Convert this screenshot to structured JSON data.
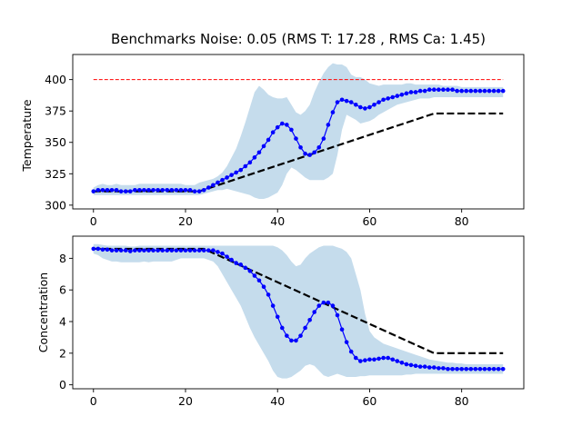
{
  "chart_data": [
    {
      "type": "line",
      "title": "Benchmarks Noise: 0.05 (RMS T: 17.28 , RMS Ca: 1.45)",
      "xlabel": "",
      "ylabel": "Temperature",
      "xlim": [
        -4.5,
        93.5
      ],
      "ylim": [
        297,
        420
      ],
      "xticks": [
        0,
        20,
        40,
        60,
        80
      ],
      "yticks": [
        300,
        325,
        350,
        375,
        400
      ],
      "grid": false,
      "colors": {
        "mean": "#0000ff",
        "band": "#c5dcec",
        "setpoint": "#000000",
        "limit": "#ff0000"
      },
      "series": [
        {
          "role": "mean",
          "values": [
            311,
            312,
            312,
            312,
            312,
            312,
            311,
            311,
            311,
            312,
            312,
            312,
            312,
            312,
            312,
            312,
            312,
            312,
            312,
            312,
            312,
            312,
            311,
            311,
            312,
            314,
            316,
            318,
            320,
            322,
            324,
            326,
            328,
            331,
            334,
            338,
            342,
            347,
            352,
            358,
            362,
            365,
            364,
            360,
            353,
            346,
            341,
            340,
            342,
            346,
            353,
            364,
            374,
            382,
            384,
            383,
            382,
            380,
            378,
            377,
            378,
            380,
            382,
            384,
            385,
            386,
            387,
            388,
            389,
            390,
            390,
            391,
            391,
            392,
            392,
            392,
            392,
            392,
            392,
            391,
            391,
            391,
            391,
            391,
            391,
            391,
            391,
            391,
            391,
            391
          ]
        },
        {
          "role": "band-upper",
          "values": [
            314,
            316,
            317,
            316,
            316,
            317,
            316,
            316,
            316,
            316,
            317,
            317,
            317,
            317,
            317,
            317,
            317,
            317,
            317,
            317,
            316,
            316,
            316,
            318,
            319,
            320,
            321,
            323,
            326,
            331,
            338,
            345,
            355,
            366,
            378,
            390,
            395,
            392,
            388,
            386,
            385,
            385,
            386,
            380,
            374,
            372,
            375,
            380,
            390,
            398,
            405,
            410,
            413,
            412,
            412,
            410,
            404,
            402,
            402,
            400,
            397,
            396,
            395,
            396,
            396,
            396,
            396,
            396,
            397,
            397,
            396,
            396,
            396,
            396,
            396,
            396,
            395,
            395,
            395,
            395,
            394,
            394,
            394,
            394,
            394,
            394,
            394,
            394,
            394,
            394
          ]
        },
        {
          "role": "band-lower",
          "values": [
            308,
            308,
            308,
            308,
            308,
            308,
            308,
            308,
            308,
            308,
            308,
            308,
            308,
            308,
            308,
            308,
            308,
            308,
            308,
            308,
            308,
            308,
            308,
            308,
            309,
            310,
            311,
            312,
            312,
            313,
            312,
            311,
            310,
            309,
            308,
            306,
            305,
            305,
            306,
            308,
            310,
            316,
            325,
            330,
            328,
            325,
            322,
            320,
            320,
            320,
            320,
            322,
            325,
            340,
            360,
            372,
            370,
            368,
            365,
            366,
            367,
            369,
            372,
            374,
            376,
            378,
            380,
            381,
            382,
            383,
            384,
            385,
            385,
            385,
            386,
            386,
            386,
            386,
            386,
            386,
            386,
            386,
            386,
            386,
            386,
            386,
            386,
            386,
            386,
            386
          ]
        },
        {
          "role": "setpoint",
          "x": [
            0,
            23,
            74,
            89
          ],
          "values": [
            311,
            311,
            373,
            373
          ]
        },
        {
          "role": "limit",
          "x": [
            0,
            89
          ],
          "values": [
            400,
            400
          ]
        }
      ]
    },
    {
      "type": "line",
      "title": "",
      "xlabel": "",
      "ylabel": "Concentration",
      "xlim": [
        -4.5,
        93.5
      ],
      "ylim": [
        -0.25,
        9.4
      ],
      "xticks": [
        0,
        20,
        40,
        60,
        80
      ],
      "yticks": [
        0,
        2,
        4,
        6,
        8
      ],
      "grid": false,
      "series": [
        {
          "role": "mean",
          "values": [
            8.6,
            8.6,
            8.55,
            8.55,
            8.5,
            8.5,
            8.5,
            8.5,
            8.45,
            8.5,
            8.5,
            8.5,
            8.5,
            8.5,
            8.5,
            8.5,
            8.5,
            8.5,
            8.5,
            8.5,
            8.5,
            8.5,
            8.5,
            8.5,
            8.5,
            8.5,
            8.5,
            8.4,
            8.3,
            8.1,
            7.9,
            7.7,
            7.6,
            7.4,
            7.2,
            6.9,
            6.6,
            6.2,
            5.7,
            5.0,
            4.3,
            3.6,
            3.1,
            2.8,
            2.8,
            3.1,
            3.6,
            4.1,
            4.6,
            5.0,
            5.2,
            5.2,
            5.0,
            4.4,
            3.5,
            2.7,
            2.1,
            1.7,
            1.5,
            1.55,
            1.6,
            1.6,
            1.65,
            1.7,
            1.7,
            1.6,
            1.5,
            1.4,
            1.3,
            1.25,
            1.2,
            1.15,
            1.15,
            1.1,
            1.1,
            1.05,
            1.05,
            1.0,
            1.0,
            1.0,
            1.0,
            1.0,
            1.0,
            1.0,
            1.0,
            1.0,
            1.0,
            1.0,
            1.0,
            1.0
          ]
        },
        {
          "role": "band-upper",
          "values": [
            8.9,
            8.9,
            8.85,
            8.8,
            8.8,
            8.8,
            8.8,
            8.8,
            8.75,
            8.75,
            8.8,
            8.8,
            8.8,
            8.8,
            8.8,
            8.8,
            8.8,
            8.8,
            8.8,
            8.8,
            8.8,
            8.8,
            8.8,
            8.8,
            8.8,
            8.8,
            8.8,
            8.8,
            8.8,
            8.8,
            8.8,
            8.8,
            8.8,
            8.8,
            8.8,
            8.8,
            8.8,
            8.8,
            8.8,
            8.8,
            8.7,
            8.5,
            8.2,
            7.8,
            7.5,
            7.6,
            8.0,
            8.3,
            8.5,
            8.7,
            8.8,
            8.8,
            8.8,
            8.7,
            8.6,
            8.4,
            8.0,
            7.0,
            6.0,
            4.5,
            3.4,
            3.0,
            2.8,
            2.6,
            2.5,
            2.4,
            2.3,
            2.2,
            2.1,
            2.0,
            1.9,
            1.8,
            1.7,
            1.6,
            1.55,
            1.5,
            1.45,
            1.4,
            1.4,
            1.35,
            1.35,
            1.3,
            1.3,
            1.3,
            1.3,
            1.3,
            1.3,
            1.3,
            1.3,
            1.3
          ]
        },
        {
          "role": "band-lower",
          "values": [
            8.3,
            8.2,
            8.0,
            7.9,
            7.8,
            7.8,
            7.75,
            7.75,
            7.75,
            7.75,
            7.75,
            7.8,
            7.75,
            7.8,
            7.8,
            7.8,
            7.8,
            7.8,
            7.9,
            8.0,
            8.0,
            8.0,
            8.0,
            8.0,
            8.0,
            7.9,
            7.8,
            7.5,
            7.0,
            6.5,
            6.0,
            5.5,
            5.0,
            4.3,
            3.6,
            3.0,
            2.5,
            2.0,
            1.5,
            0.9,
            0.5,
            0.4,
            0.4,
            0.5,
            0.7,
            0.9,
            1.2,
            1.3,
            1.2,
            0.9,
            0.6,
            0.5,
            0.6,
            0.7,
            0.6,
            0.5,
            0.5,
            0.5,
            0.55,
            0.55,
            0.6,
            0.6,
            0.6,
            0.6,
            0.6,
            0.6,
            0.6,
            0.6,
            0.65,
            0.65,
            0.7,
            0.7,
            0.7,
            0.7,
            0.7,
            0.7,
            0.7,
            0.7,
            0.7,
            0.7,
            0.7,
            0.7,
            0.7,
            0.7,
            0.7,
            0.7,
            0.7,
            0.7,
            0.7,
            0.7
          ]
        },
        {
          "role": "setpoint",
          "x": [
            0,
            24,
            74,
            89
          ],
          "values": [
            8.6,
            8.6,
            2.0,
            2.0
          ]
        }
      ]
    }
  ]
}
